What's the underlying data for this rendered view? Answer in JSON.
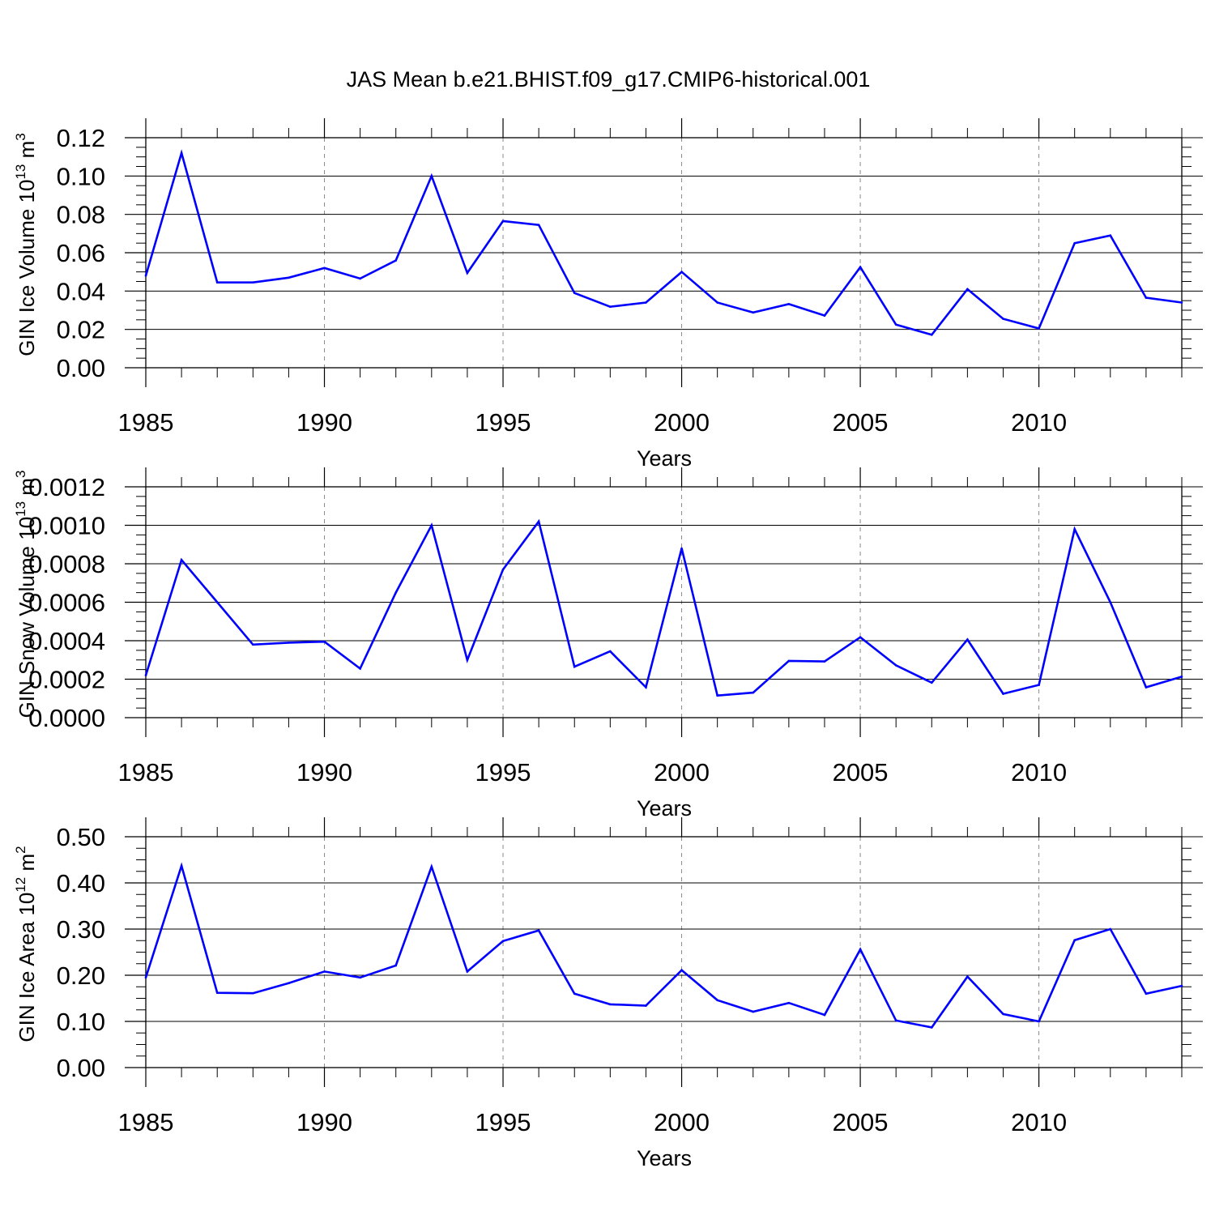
{
  "figure_title": "JAS Mean b.e21.BHIST.f09_g17.CMIP6-historical.001",
  "line_color": "#0000ff",
  "chart_data": [
    {
      "type": "line",
      "title": "",
      "ylabel": "GIN Ice Volume 10",
      "ylabel_exp": "13",
      "ylabel_unit": " m",
      "ylabel_unit_exp": "3",
      "xlabel": "Years",
      "xlim": [
        1985,
        2014
      ],
      "ylim": [
        0,
        0.12
      ],
      "xticks": [
        "1985",
        "1990",
        "1995",
        "2000",
        "2005",
        "2010"
      ],
      "yticks": [
        "0.00",
        "0.02",
        "0.04",
        "0.06",
        "0.08",
        "0.10",
        "0.12"
      ],
      "series": [
        {
          "name": "GIN Ice Volume",
          "x": [
            1985,
            1986,
            1987,
            1988,
            1989,
            1990,
            1991,
            1992,
            1993,
            1994,
            1995,
            1996,
            1997,
            1998,
            1999,
            2000,
            2001,
            2002,
            2003,
            2004,
            2005,
            2006,
            2007,
            2008,
            2009,
            2010,
            2011,
            2012,
            2013,
            2014
          ],
          "values": [
            0.048,
            0.112,
            0.0445,
            0.0445,
            0.047,
            0.052,
            0.0465,
            0.056,
            0.1,
            0.0495,
            0.0765,
            0.0745,
            0.039,
            0.0318,
            0.034,
            0.05,
            0.034,
            0.0288,
            0.0332,
            0.0272,
            0.0525,
            0.0225,
            0.0172,
            0.041,
            0.0255,
            0.0205,
            0.065,
            0.069,
            0.0365,
            0.034
          ]
        }
      ]
    },
    {
      "type": "line",
      "title": "",
      "ylabel": "GIN Snow Volume 10",
      "ylabel_exp": "13",
      "ylabel_unit": " m",
      "ylabel_unit_exp": "3",
      "xlabel": "Years",
      "xlim": [
        1985,
        2014
      ],
      "ylim": [
        0,
        0.0012
      ],
      "xticks": [
        "1985",
        "1990",
        "1995",
        "2000",
        "2005",
        "2010"
      ],
      "yticks": [
        "0.0000",
        "0.0002",
        "0.0004",
        "0.0006",
        "0.0008",
        "0.0010",
        "0.0012"
      ],
      "series": [
        {
          "name": "GIN Snow Volume",
          "x": [
            1985,
            1986,
            1987,
            1988,
            1989,
            1990,
            1991,
            1992,
            1993,
            1994,
            1995,
            1996,
            1997,
            1998,
            1999,
            2000,
            2001,
            2002,
            2003,
            2004,
            2005,
            2006,
            2007,
            2008,
            2009,
            2010,
            2011,
            2012,
            2013,
            2014
          ],
          "values": [
            0.00022,
            0.00082,
            0.0006,
            0.00038,
            0.00039,
            0.000395,
            0.000255,
            0.00065,
            0.001,
            0.0003,
            0.00077,
            0.00102,
            0.000265,
            0.000345,
            0.000158,
            0.00088,
            0.000115,
            0.00013,
            0.000295,
            0.000292,
            0.000418,
            0.000272,
            0.000182,
            0.000406,
            0.000124,
            0.00017,
            0.00098,
            0.0006,
            0.000158,
            0.000213
          ]
        }
      ]
    },
    {
      "type": "line",
      "title": "",
      "ylabel": "GIN Ice Area 10",
      "ylabel_exp": "12",
      "ylabel_unit": " m",
      "ylabel_unit_exp": "2",
      "xlabel": "Years",
      "xlim": [
        1985,
        2014
      ],
      "ylim": [
        0,
        0.5
      ],
      "xticks": [
        "1985",
        "1990",
        "1995",
        "2000",
        "2005",
        "2010"
      ],
      "yticks": [
        "0.00",
        "0.10",
        "0.20",
        "0.30",
        "0.40",
        "0.50"
      ],
      "series": [
        {
          "name": "GIN Ice Area",
          "x": [
            1985,
            1986,
            1987,
            1988,
            1989,
            1990,
            1991,
            1992,
            1993,
            1994,
            1995,
            1996,
            1997,
            1998,
            1999,
            2000,
            2001,
            2002,
            2003,
            2004,
            2005,
            2006,
            2007,
            2008,
            2009,
            2010,
            2011,
            2012,
            2013,
            2014
          ],
          "values": [
            0.195,
            0.437,
            0.162,
            0.161,
            0.183,
            0.208,
            0.195,
            0.221,
            0.435,
            0.208,
            0.274,
            0.297,
            0.16,
            0.137,
            0.134,
            0.211,
            0.146,
            0.121,
            0.14,
            0.114,
            0.256,
            0.102,
            0.087,
            0.197,
            0.116,
            0.1,
            0.276,
            0.3,
            0.16,
            0.177
          ]
        }
      ]
    }
  ]
}
